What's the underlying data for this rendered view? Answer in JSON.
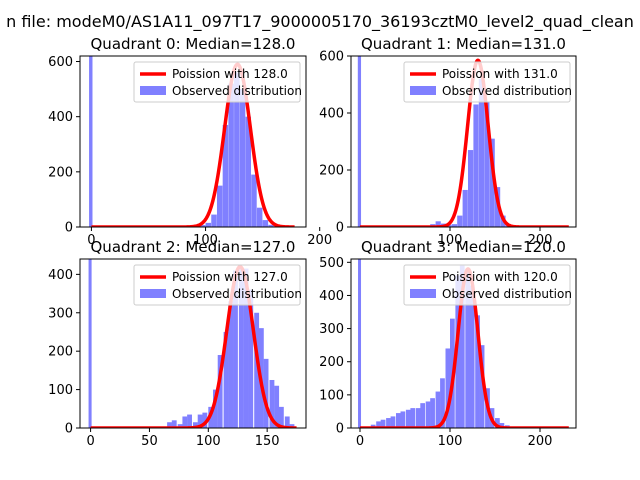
{
  "figure": {
    "suptitle": "n file: modeM0/AS1A11_097T17_9000005170_36193cztM0_level2_quad_clean",
    "fit_color": "#ff0000",
    "hist_color": "#8080ff"
  },
  "chart_data": [
    {
      "type": "bar",
      "title": "Quadrant 0: Median=128.0",
      "xlim": [
        -10,
        188
      ],
      "ylim": [
        0,
        620
      ],
      "xticks": [
        0,
        100,
        200
      ],
      "yticks": [
        0,
        200,
        400,
        600
      ],
      "legend": [
        "Poission with 128.0",
        "Observed distribution"
      ],
      "legend_position": "top-right",
      "bin_width": 5,
      "spike": {
        "x": 0,
        "value": 620
      },
      "bins_x": [
        70,
        75,
        80,
        85,
        90,
        95,
        100,
        105,
        110,
        115,
        120,
        125,
        130,
        135,
        140,
        145,
        150,
        155,
        160,
        165,
        170
      ],
      "bins_values": [
        1,
        2,
        2,
        3,
        5,
        7,
        15,
        45,
        150,
        370,
        520,
        560,
        500,
        400,
        190,
        70,
        25,
        8,
        3,
        2,
        1
      ],
      "fit_mean": 128.0,
      "fit_peak": 590,
      "fit_range": [
        0,
        178
      ]
    },
    {
      "type": "bar",
      "title": "Quadrant 1: Median=131.0",
      "xlim": [
        -10,
        240
      ],
      "ylim": [
        0,
        600
      ],
      "xticks": [
        100,
        200
      ],
      "yticks": [
        0,
        200,
        400,
        600
      ],
      "legend": [
        "Poission with 131.0",
        "Observed distribution"
      ],
      "legend_position": "top-right",
      "bin_width": 6,
      "spike": {
        "x": 0,
        "value": 600
      },
      "bins_x": [
        72,
        78,
        84,
        90,
        96,
        102,
        108,
        114,
        120,
        126,
        132,
        138,
        144,
        150,
        156,
        162,
        168,
        174
      ],
      "bins_values": [
        5,
        10,
        20,
        12,
        8,
        10,
        40,
        130,
        270,
        430,
        520,
        440,
        310,
        140,
        40,
        10,
        4,
        2
      ],
      "fit_mean": 131.0,
      "fit_peak": 585,
      "fit_range": [
        0,
        232
      ]
    },
    {
      "type": "bar",
      "title": "Quadrant 2: Median=127.0",
      "xlim": [
        -9,
        183
      ],
      "ylim": [
        0,
        440
      ],
      "xticks": [
        0,
        50,
        100,
        150
      ],
      "yticks": [
        0,
        100,
        200,
        300,
        400
      ],
      "legend": [
        "Poission with 127.0",
        "Observed distribution"
      ],
      "legend_position": "top-right",
      "bin_width": 4.3,
      "spike": {
        "x": 0,
        "value": 440
      },
      "bins_x": [
        65,
        69,
        74,
        78,
        82,
        87,
        91,
        95,
        100,
        104,
        108,
        113,
        117,
        121,
        126,
        130,
        134,
        139,
        143,
        147,
        152,
        156,
        160,
        165,
        169
      ],
      "bins_values": [
        15,
        20,
        10,
        30,
        35,
        15,
        35,
        40,
        55,
        100,
        190,
        250,
        330,
        410,
        415,
        415,
        360,
        300,
        260,
        180,
        125,
        110,
        55,
        30,
        10
      ],
      "fit_mean": 127.0,
      "fit_peak": 420,
      "fit_range": [
        0,
        175
      ]
    },
    {
      "type": "bar",
      "title": "Quadrant 3: Median=120.0",
      "xlim": [
        -10,
        240
      ],
      "ylim": [
        0,
        510
      ],
      "xticks": [
        0,
        100,
        200
      ],
      "yticks": [
        0,
        100,
        200,
        300,
        400,
        500
      ],
      "legend": [
        "Poission with 120.0",
        "Observed distribution"
      ],
      "legend_position": "top-right",
      "bin_width": 5.5,
      "spike": {
        "x": 0,
        "value": 510
      },
      "bins_x": [
        12,
        18,
        23,
        29,
        34,
        40,
        45,
        51,
        56,
        62,
        67,
        73,
        78,
        84,
        89,
        95,
        100,
        106,
        111,
        117,
        122,
        128,
        133,
        139,
        144,
        150,
        155,
        161,
        166
      ],
      "bins_values": [
        10,
        20,
        25,
        30,
        35,
        45,
        50,
        55,
        60,
        60,
        75,
        80,
        90,
        110,
        150,
        240,
        330,
        460,
        490,
        470,
        430,
        340,
        250,
        120,
        60,
        30,
        15,
        8,
        3
      ],
      "fit_mean": 120.0,
      "fit_peak": 480,
      "fit_range": [
        0,
        232
      ]
    }
  ]
}
